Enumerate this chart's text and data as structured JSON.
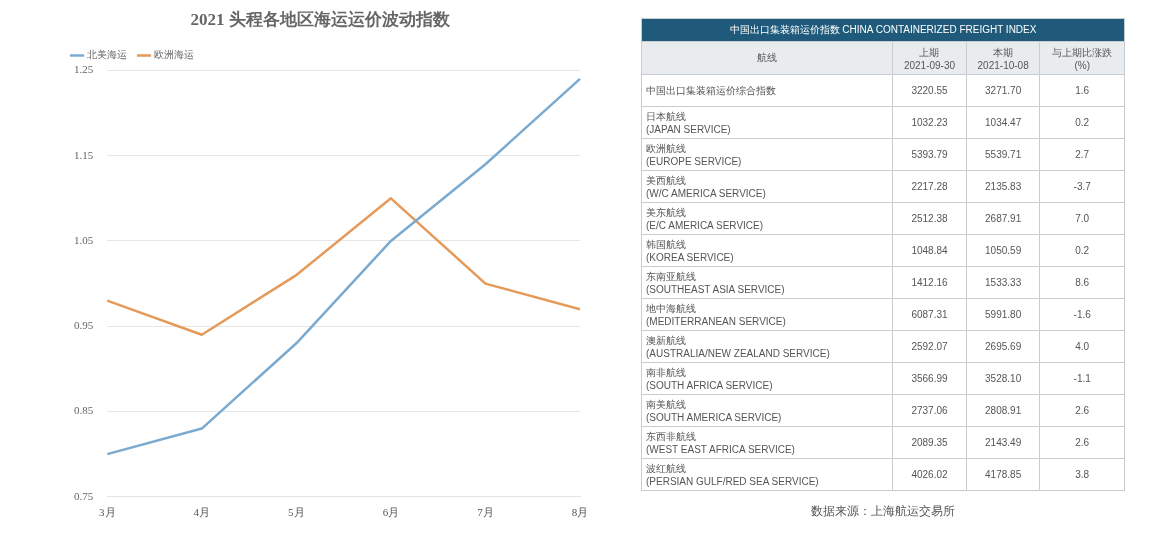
{
  "chart_data": [
    {
      "type": "line",
      "title": "2021 头程各地区海运运价波动指数",
      "categories": [
        "3月",
        "4月",
        "5月",
        "6月",
        "7月",
        "8月"
      ],
      "series": [
        {
          "name": "北美海运",
          "color": "#7aaad0",
          "values": [
            0.8,
            0.83,
            0.93,
            1.05,
            1.14,
            1.24
          ]
        },
        {
          "name": "欧洲海运",
          "color": "#e59a5a",
          "values": [
            0.98,
            0.94,
            1.01,
            1.1,
            1.0,
            0.97
          ]
        }
      ],
      "ylim": [
        0.75,
        1.25
      ],
      "yticks": [
        0.75,
        0.85,
        0.95,
        1.05,
        1.15,
        1.25
      ],
      "grid": "y",
      "legend": "top left",
      "marker": "none",
      "line_style": "solid"
    },
    {
      "type": "other",
      "title": "中国出口集装箱运价指数 CHINA CONTAINERIZED FREIGHT INDEX",
      "ylabel": "航线",
      "categories": [
        "中国出口集装箱运价综合指数",
        "日本航线\n(JAPAN SERVICE)",
        "欧洲航线\n(EUROPE SERVICE)",
        "美西航线\n(W/C AMERICA SERVICE)",
        "美东航线\n(E/C AMERICA SERVICE)",
        "韩国航线\n(KOREA SERVICE)",
        "东南亚航线\n(SOUTHEAST ASIA SERVICE)",
        "地中海航线\n(MEDITERRANEAN SERVICE)",
        "澳新航线\n(AUSTRALIA/NEW ZEALAND SERVICE)",
        "南非航线\n(SOUTH AFRICA SERVICE)",
        "南美航线\n(SOUTH AMERICA SERVICE)",
        "东西非航线\n(WEST EAST AFRICA SERVICE)",
        "波红航线\n(PERSIAN GULF/RED SEA SERVICE)"
      ],
      "series": [
        {
          "name": "上期\n2021-09-30",
          "values": [
            3220.55,
            1032.23,
            5393.79,
            2217.28,
            2512.38,
            1048.84,
            1412.16,
            6087.31,
            2592.07,
            3566.99,
            2737.06,
            2089.35,
            4026.02
          ],
          "value_labels": [
            "3220.55",
            "1032.23",
            "5393.79",
            "2217.28",
            "2512.38",
            "1048.84",
            "1412.16",
            "6087.31",
            "2592.07",
            "3566.99",
            "2737.06",
            "2089.35",
            "4026.02"
          ]
        },
        {
          "name": "本期\n2021-10-08",
          "values": [
            3271.7,
            1034.47,
            5539.71,
            2135.83,
            2687.91,
            1050.59,
            1533.33,
            5991.8,
            2695.69,
            3528.1,
            2808.91,
            2143.49,
            4178.85
          ],
          "value_labels": [
            "3271.70",
            "1034.47",
            "5539.71",
            "2135.83",
            "2687.91",
            "1050.59",
            "1533.33",
            "5991.80",
            "2695.69",
            "3528.10",
            "2808.91",
            "2143.49",
            "4178.85"
          ]
        },
        {
          "name": "与上期比涨跌\n(%)",
          "values": [
            1.6,
            0.2,
            2.7,
            -3.7,
            7.0,
            0.2,
            8.6,
            -1.6,
            4.0,
            -1.1,
            2.6,
            2.6,
            3.8
          ],
          "value_labels": [
            "1.6",
            "0.2",
            "2.7",
            "-3.7",
            "7.0",
            "0.2",
            "8.6",
            "-1.6",
            "4.0",
            "-1.1",
            "2.6",
            "2.6",
            "3.8"
          ]
        }
      ],
      "annotations": [
        "数据来源：上海航运交易所"
      ]
    }
  ]
}
